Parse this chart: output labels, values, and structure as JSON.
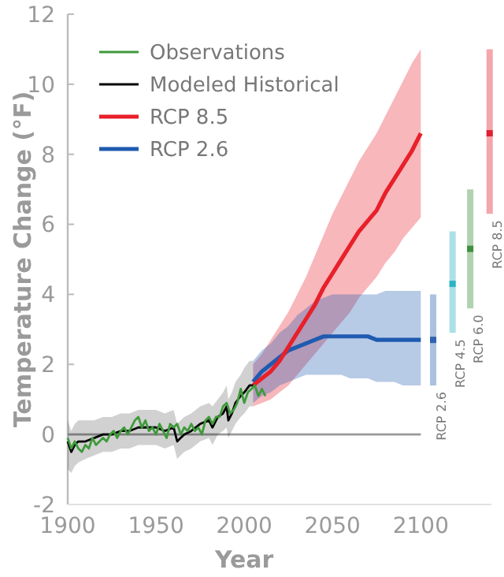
{
  "chart_data": {
    "type": "line",
    "xlabel": "Year",
    "ylabel": "Temperature Change (°F)",
    "xlim": [
      1900,
      2140
    ],
    "ylim": [
      -2,
      12
    ],
    "xticks": [
      1900,
      1950,
      2000,
      2050,
      2100
    ],
    "yticks": [
      -2,
      0,
      2,
      4,
      6,
      8,
      10,
      12
    ],
    "grid": false,
    "legend": "top left",
    "marker": "none",
    "line_style": "solid",
    "ref_lines": [
      {
        "axis": "y",
        "value": 0,
        "color": "#999999"
      }
    ],
    "series": [
      {
        "name": "Observations",
        "color": "#3f9a3a",
        "x": [
          1900,
          1902,
          1904,
          1906,
          1908,
          1910,
          1912,
          1914,
          1916,
          1918,
          1920,
          1922,
          1924,
          1926,
          1928,
          1930,
          1932,
          1934,
          1936,
          1938,
          1940,
          1942,
          1944,
          1946,
          1948,
          1950,
          1952,
          1954,
          1956,
          1958,
          1960,
          1962,
          1964,
          1966,
          1968,
          1970,
          1972,
          1974,
          1976,
          1978,
          1980,
          1982,
          1984,
          1986,
          1988,
          1990,
          1992,
          1994,
          1996,
          1998,
          2000,
          2002,
          2004,
          2006,
          2008,
          2010,
          2012
        ],
        "values": [
          -0.1,
          -0.4,
          -0.2,
          -0.4,
          -0.5,
          -0.3,
          -0.4,
          -0.1,
          -0.3,
          -0.2,
          -0.1,
          -0.2,
          0.0,
          0.1,
          -0.1,
          0.1,
          0.2,
          0.0,
          0.2,
          0.4,
          0.5,
          0.2,
          0.4,
          0.1,
          0.2,
          0.0,
          0.3,
          0.1,
          -0.1,
          0.3,
          0.2,
          0.3,
          0.0,
          0.2,
          0.1,
          0.3,
          0.1,
          0.2,
          0.0,
          0.4,
          0.5,
          0.3,
          0.5,
          0.5,
          0.8,
          0.9,
          0.6,
          0.7,
          0.9,
          1.3,
          0.9,
          1.2,
          1.3,
          1.4,
          1.1,
          1.3,
          1.1
        ]
      },
      {
        "name": "Modeled Historical",
        "color": "#000000",
        "x": [
          1900,
          1902,
          1904,
          1906,
          1910,
          1915,
          1920,
          1925,
          1930,
          1935,
          1940,
          1945,
          1950,
          1955,
          1960,
          1962,
          1964,
          1966,
          1970,
          1975,
          1980,
          1982,
          1985,
          1988,
          1990,
          1991,
          1993,
          1995,
          1998,
          2000,
          2003,
          2005
        ],
        "values": [
          -0.2,
          -0.5,
          -0.3,
          -0.2,
          -0.2,
          -0.1,
          0.0,
          0.0,
          0.1,
          0.1,
          0.2,
          0.2,
          0.2,
          0.1,
          0.2,
          -0.2,
          -0.1,
          0.0,
          0.1,
          0.3,
          0.4,
          0.2,
          0.5,
          0.6,
          0.8,
          0.4,
          0.6,
          0.9,
          1.1,
          1.2,
          1.4,
          1.4
        ],
        "lower": [
          -1.0,
          -1.1,
          -0.9,
          -0.8,
          -0.7,
          -0.6,
          -0.5,
          -0.5,
          -0.4,
          -0.4,
          -0.3,
          -0.3,
          -0.3,
          -0.4,
          -0.3,
          -0.7,
          -0.6,
          -0.5,
          -0.4,
          -0.2,
          -0.1,
          -0.3,
          0.0,
          0.1,
          0.2,
          -0.1,
          0.1,
          0.3,
          0.5,
          0.6,
          0.8,
          0.8
        ],
        "upper": [
          0.4,
          0.1,
          0.3,
          0.4,
          0.4,
          0.4,
          0.5,
          0.5,
          0.6,
          0.6,
          0.7,
          0.7,
          0.7,
          0.6,
          0.7,
          0.3,
          0.4,
          0.5,
          0.6,
          0.8,
          0.9,
          0.8,
          1.0,
          1.2,
          1.4,
          1.0,
          1.2,
          1.5,
          1.7,
          1.9,
          2.1,
          2.1
        ]
      },
      {
        "name": "RCP 8.5",
        "color": "#e8202a",
        "x": [
          2005,
          2010,
          2015,
          2020,
          2025,
          2030,
          2035,
          2040,
          2045,
          2050,
          2055,
          2060,
          2065,
          2070,
          2075,
          2080,
          2085,
          2090,
          2095,
          2100
        ],
        "values": [
          1.4,
          1.6,
          1.8,
          2.1,
          2.5,
          2.9,
          3.3,
          3.7,
          4.2,
          4.6,
          5.0,
          5.4,
          5.8,
          6.1,
          6.4,
          6.9,
          7.3,
          7.7,
          8.1,
          8.6
        ],
        "lower": [
          0.8,
          0.9,
          1.0,
          1.2,
          1.4,
          1.7,
          2.0,
          2.3,
          2.6,
          2.9,
          3.2,
          3.5,
          3.9,
          4.2,
          4.5,
          4.9,
          5.2,
          5.6,
          5.9,
          6.2
        ],
        "upper": [
          2.0,
          2.3,
          2.7,
          3.1,
          3.5,
          4.0,
          4.5,
          5.1,
          5.7,
          6.3,
          6.8,
          7.3,
          7.8,
          8.2,
          8.6,
          9.1,
          9.6,
          10.1,
          10.6,
          11.0
        ]
      },
      {
        "name": "RCP 2.6",
        "color": "#1f5bb0",
        "x": [
          2005,
          2010,
          2015,
          2020,
          2025,
          2030,
          2035,
          2040,
          2045,
          2050,
          2055,
          2060,
          2065,
          2070,
          2075,
          2080,
          2085,
          2090,
          2095,
          2100
        ],
        "values": [
          1.5,
          1.8,
          2.0,
          2.2,
          2.4,
          2.5,
          2.6,
          2.7,
          2.8,
          2.8,
          2.8,
          2.8,
          2.8,
          2.8,
          2.7,
          2.7,
          2.7,
          2.7,
          2.7,
          2.7
        ],
        "lower": [
          0.9,
          1.1,
          1.2,
          1.4,
          1.5,
          1.6,
          1.7,
          1.7,
          1.7,
          1.7,
          1.7,
          1.6,
          1.6,
          1.6,
          1.5,
          1.5,
          1.5,
          1.4,
          1.4,
          1.4
        ],
        "upper": [
          2.1,
          2.4,
          2.6,
          2.9,
          3.1,
          3.4,
          3.6,
          3.8,
          3.9,
          4.0,
          4.0,
          4.0,
          4.0,
          4.0,
          4.0,
          4.1,
          4.1,
          4.1,
          4.1,
          4.1
        ]
      },
      {
        "type": "scatter",
        "marker": "square",
        "x": [
          2107,
          2118,
          2128,
          2139
        ],
        "values": [
          2.7,
          4.3,
          5.3,
          8.6
        ],
        "errors": [
          [
            1.4,
            4.0
          ],
          [
            2.9,
            5.8
          ],
          [
            3.6,
            7.0
          ],
          [
            6.3,
            11.0
          ]
        ],
        "colors": [
          "#2f63b0",
          "#2bb5c4",
          "#3d8f3d",
          "#e02030"
        ]
      }
    ],
    "annotations": [
      {
        "text": "RCP 2.6",
        "x": 2107,
        "y": 1.4
      },
      {
        "text": "RCP 4.5",
        "x": 2118,
        "y": 2.9
      },
      {
        "text": "RCP 6.0",
        "x": 2128,
        "y": 3.6
      },
      {
        "text": "RCP 8.5",
        "x": 2139,
        "y": 6.3
      }
    ]
  }
}
